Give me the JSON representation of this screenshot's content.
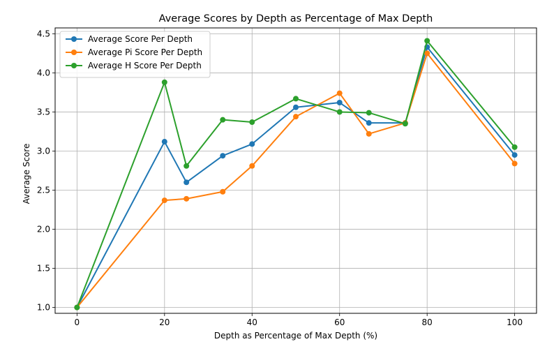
{
  "chart_data": {
    "type": "line",
    "title": "Average Scores by Depth as Percentage of Max Depth",
    "xlabel": "Depth as Percentage of Max Depth (%)",
    "ylabel": "Average Score",
    "xlim": [
      -5,
      105
    ],
    "ylim": [
      0.925,
      4.575
    ],
    "xticks": [
      0,
      20,
      40,
      60,
      80,
      100
    ],
    "xtick_labels": [
      "0",
      "20",
      "40",
      "60",
      "80",
      "100"
    ],
    "yticks": [
      1.0,
      1.5,
      2.0,
      2.5,
      3.0,
      3.5,
      4.0,
      4.5
    ],
    "ytick_labels": [
      "1.0",
      "1.5",
      "2.0",
      "2.5",
      "3.0",
      "3.5",
      "4.0",
      "4.5"
    ],
    "grid": true,
    "legend_position": "top-left",
    "series": [
      {
        "name": "Average Score Per Depth",
        "color": "#1f77b4",
        "x": [
          0,
          20,
          25,
          33.3,
          40,
          50,
          60,
          66.7,
          75,
          80,
          100
        ],
        "y": [
          1.0,
          3.12,
          2.6,
          2.94,
          3.09,
          3.56,
          3.62,
          3.36,
          3.36,
          4.33,
          2.95
        ]
      },
      {
        "name": "Average Pi Score Per Depth",
        "color": "#ff7f0e",
        "x": [
          0,
          20,
          25,
          33.3,
          40,
          50,
          60,
          66.7,
          75,
          80,
          100
        ],
        "y": [
          1.0,
          2.37,
          2.39,
          2.48,
          2.81,
          3.44,
          3.74,
          3.22,
          3.36,
          4.25,
          2.84
        ]
      },
      {
        "name": "Average H Score Per Depth",
        "color": "#2ca02c",
        "x": [
          0,
          20,
          25,
          33.3,
          40,
          50,
          60,
          66.7,
          75,
          80,
          100
        ],
        "y": [
          1.0,
          3.88,
          2.81,
          3.4,
          3.37,
          3.67,
          3.5,
          3.49,
          3.35,
          4.41,
          3.05
        ]
      }
    ]
  }
}
